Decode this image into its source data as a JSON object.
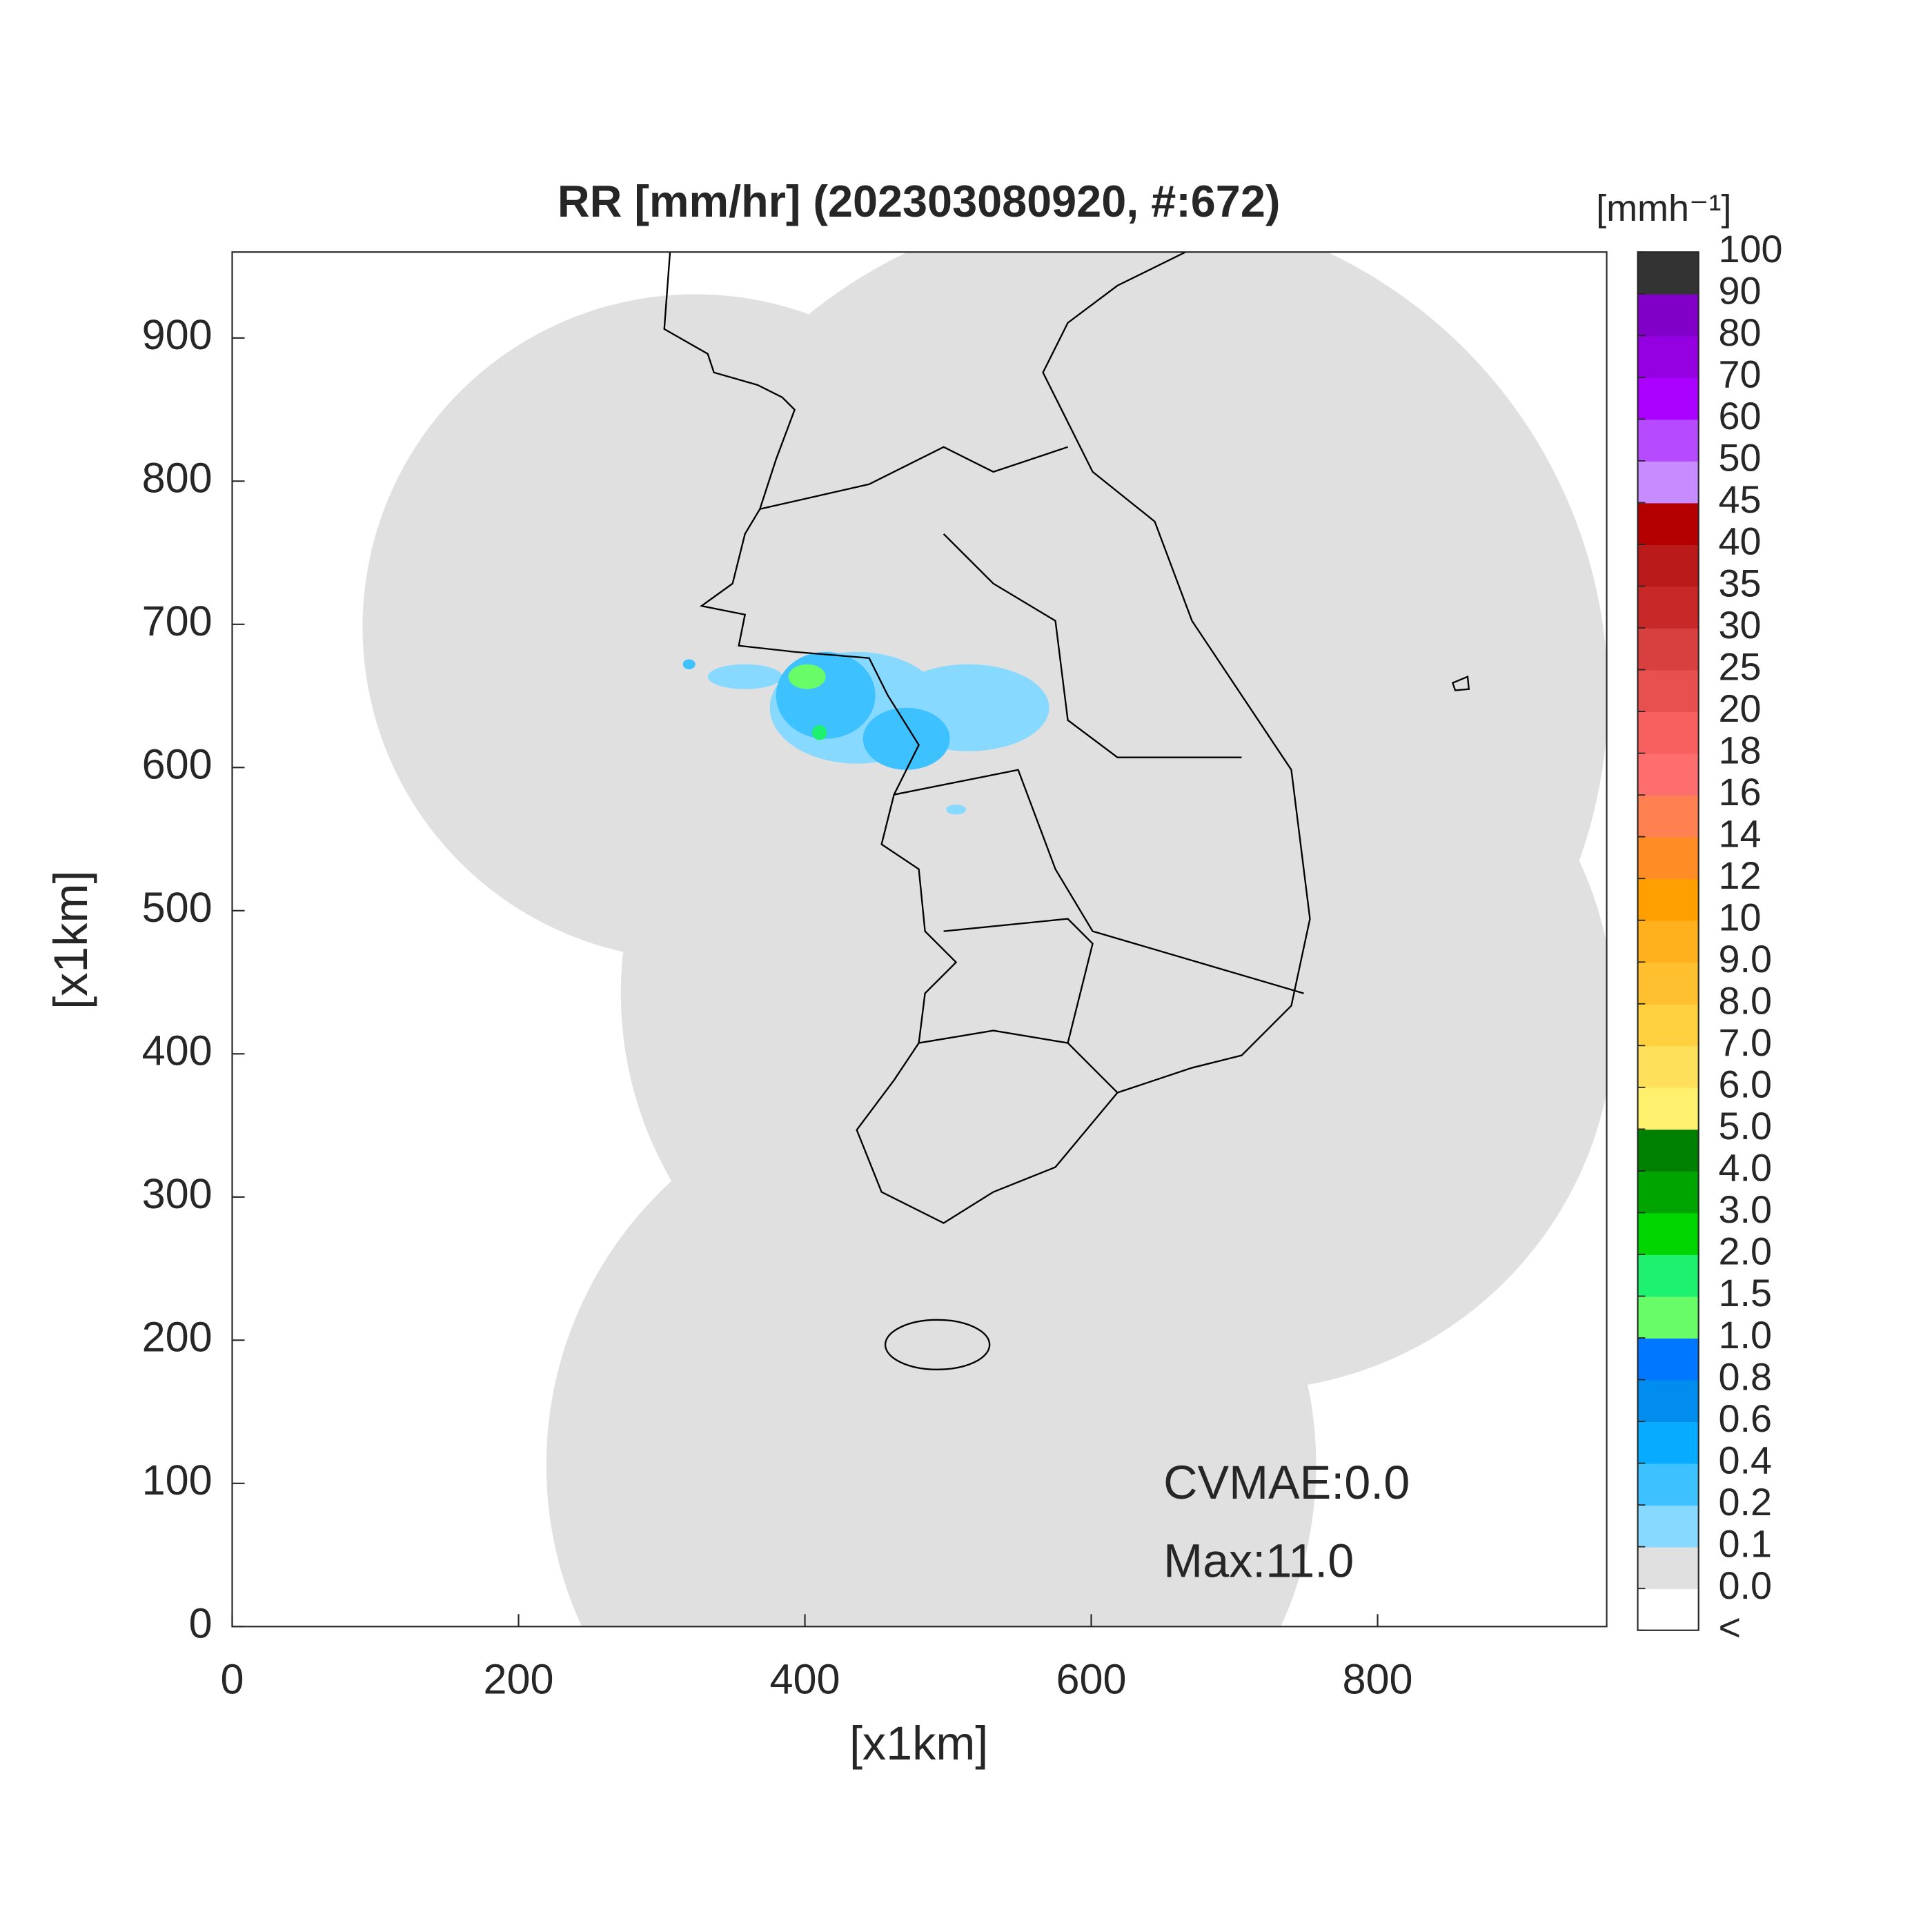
{
  "chart_data": {
    "type": "map",
    "title": "RR [mm/hr] (202303080920, #:672)",
    "xlabel": "[x1km]",
    "ylabel": "[x1km]",
    "xlim": [
      0,
      960
    ],
    "ylim": [
      0,
      960
    ],
    "xticks": [
      0,
      200,
      400,
      600,
      800
    ],
    "yticks": [
      0,
      100,
      200,
      300,
      400,
      500,
      600,
      700,
      800,
      900
    ],
    "annotations": [
      "CVMAE:0.0",
      "Max:11.0"
    ],
    "colorbar": {
      "unit": "[mmh⁻¹]",
      "ticks": [
        "<",
        {
          "value": 0,
          "label": "0.0"
        },
        0.1,
        0.2,
        0.4,
        0.6,
        0.8,
        {
          "value": 1,
          "label": "1.0"
        },
        1.5,
        {
          "value": 2,
          "label": "2.0"
        },
        {
          "value": 3,
          "label": "3.0"
        },
        {
          "value": 4,
          "label": "4.0"
        },
        {
          "value": 5,
          "label": "5.0"
        },
        {
          "value": 6,
          "label": "6.0"
        },
        {
          "value": 7,
          "label": "7.0"
        },
        {
          "value": 8,
          "label": "8.0"
        },
        {
          "value": 9,
          "label": "9.0"
        },
        10,
        12,
        14,
        16,
        18,
        20,
        25,
        30,
        35,
        40,
        45,
        50,
        60,
        70,
        80,
        90,
        100
      ],
      "colors": [
        "#ffffff",
        "#e0e0e0",
        "#87d9ff",
        "#3ec1ff",
        "#07abff",
        "#008dee",
        "#0077ff",
        "#69fc69",
        "#1ef06f",
        "#00d500",
        "#00a400",
        "#008000",
        "#fff06e",
        "#ffe05a",
        "#ffd040",
        "#ffc030",
        "#ffb01c",
        "#ffa000",
        "#ff8c24",
        "#ff8050",
        "#ff6e6e",
        "#f86060",
        "#e85050",
        "#d84040",
        "#c82828",
        "#bb1a1a",
        "#b40000",
        "#c88cff",
        "#b54aff",
        "#a900ff",
        "#9400e0",
        "#8000c8",
        "#333333"
      ]
    }
  }
}
